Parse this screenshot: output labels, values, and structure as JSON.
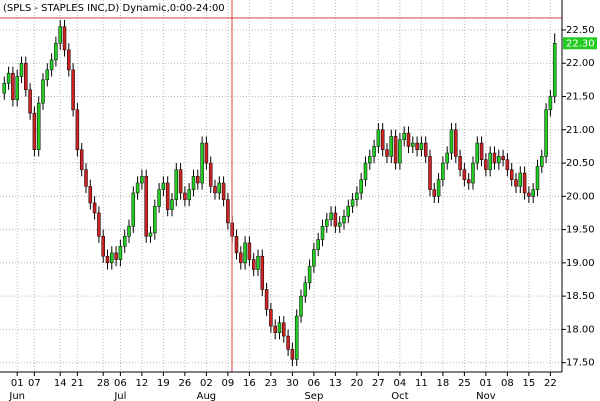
{
  "chart_data": {
    "type": "candlestick",
    "title": "(SPLS - STAPLES INC,D) Dynamic,0:00-24:00",
    "up_color": "#22cc22",
    "down_color": "#cc2222",
    "grid": true,
    "xlim": [
      -1,
      129.7
    ],
    "ylim": [
      17.36,
      22.95
    ],
    "yticks": [
      {
        "value": 17.5,
        "label": "17.50"
      },
      {
        "value": 18,
        "label": "18.00"
      },
      {
        "value": 18.5,
        "label": "18.50"
      },
      {
        "value": 19,
        "label": "19.00"
      },
      {
        "value": 19.5,
        "label": "19.50"
      },
      {
        "value": 20,
        "label": "20.00"
      },
      {
        "value": 20.5,
        "label": "20.50"
      },
      {
        "value": 21,
        "label": "21.00"
      },
      {
        "value": 21.5,
        "label": "21.50"
      },
      {
        "value": 22,
        "label": "22.00"
      },
      {
        "value": 22.5,
        "label": "22.50"
      }
    ],
    "xticks": [
      {
        "value": 3,
        "label": "01"
      },
      {
        "value": 7,
        "label": "07"
      },
      {
        "value": 13,
        "label": "14"
      },
      {
        "value": 17,
        "label": "21"
      },
      {
        "value": 23,
        "label": "28"
      },
      {
        "value": 27,
        "label": "06"
      },
      {
        "value": 32,
        "label": "12"
      },
      {
        "value": 37,
        "label": "19"
      },
      {
        "value": 42,
        "label": "26"
      },
      {
        "value": 47,
        "label": "02"
      },
      {
        "value": 52,
        "label": "09"
      },
      {
        "value": 57,
        "label": "16"
      },
      {
        "value": 62,
        "label": "23"
      },
      {
        "value": 67,
        "label": "30"
      },
      {
        "value": 72,
        "label": "06"
      },
      {
        "value": 77,
        "label": "13"
      },
      {
        "value": 82,
        "label": "20"
      },
      {
        "value": 87,
        "label": "27"
      },
      {
        "value": 92,
        "label": "04"
      },
      {
        "value": 97,
        "label": "11"
      },
      {
        "value": 102,
        "label": "18"
      },
      {
        "value": 107,
        "label": "25"
      },
      {
        "value": 112,
        "label": "01"
      },
      {
        "value": 117,
        "label": "08"
      },
      {
        "value": 122,
        "label": "15"
      },
      {
        "value": 127,
        "label": "22"
      }
    ],
    "month_ticks": [
      {
        "value": 3,
        "label": "Jun"
      },
      {
        "value": 27,
        "label": "Jul"
      },
      {
        "value": 47,
        "label": "Aug"
      },
      {
        "value": 72,
        "label": "Sep"
      },
      {
        "value": 92,
        "label": "Oct"
      },
      {
        "value": 112,
        "label": "Nov"
      }
    ],
    "last_price_label": "22.30",
    "open": [
      21.55,
      21.7,
      21.85,
      21.45,
      21.8,
      22.0,
      21.6,
      21.25,
      20.7,
      21.4,
      21.75,
      21.9,
      22.05,
      22.3,
      22.55,
      22.2,
      21.9,
      21.3,
      20.7,
      20.4,
      20.15,
      19.9,
      19.75,
      19.4,
      19.1,
      19.0,
      19.15,
      19.05,
      19.25,
      19.4,
      19.55,
      20.05,
      20.2,
      20.3,
      19.4,
      19.45,
      19.85,
      20.1,
      20.2,
      19.8,
      19.95,
      20.4,
      20.05,
      19.95,
      20.1,
      20.3,
      20.2,
      20.8,
      20.5,
      20.15,
      20.05,
      20.2,
      19.95,
      19.6,
      19.4,
      19.15,
      19.0,
      19.3,
      19.05,
      18.9,
      19.1,
      18.6,
      18.3,
      18.05,
      17.95,
      18.1,
      17.9,
      17.7,
      17.55,
      18.2,
      18.5,
      18.7,
      18.95,
      19.2,
      19.35,
      19.55,
      19.65,
      19.75,
      19.55,
      19.6,
      19.7,
      19.85,
      19.95,
      20.05,
      20.25,
      20.5,
      20.6,
      20.75,
      21.0,
      20.7,
      20.6,
      20.9,
      20.5,
      20.85,
      20.95,
      20.75,
      20.8,
      20.7,
      20.8,
      20.6,
      20.1,
      20.0,
      20.25,
      20.5,
      20.65,
      21.0,
      20.6,
      20.4,
      20.25,
      20.2,
      20.5,
      20.8,
      20.55,
      20.4,
      20.65,
      20.5,
      20.6,
      20.55,
      20.4,
      20.25,
      20.15,
      20.35,
      20.05,
      20.0,
      20.1,
      20.45,
      20.6,
      21.3,
      21.5
    ],
    "high": [
      21.8,
      21.95,
      21.95,
      21.9,
      22.1,
      22.1,
      21.7,
      21.35,
      21.5,
      21.85,
      22.0,
      22.15,
      22.4,
      22.65,
      22.65,
      22.3,
      22.0,
      21.4,
      20.8,
      20.5,
      20.25,
      20.0,
      19.85,
      19.5,
      19.2,
      19.25,
      19.25,
      19.35,
      19.5,
      19.65,
      20.15,
      20.3,
      20.4,
      20.4,
      19.55,
      19.95,
      20.2,
      20.3,
      20.3,
      20.05,
      20.5,
      20.5,
      20.15,
      20.2,
      20.4,
      20.4,
      20.9,
      20.9,
      20.6,
      20.25,
      20.3,
      20.3,
      20.05,
      19.7,
      19.5,
      19.25,
      19.4,
      19.4,
      19.15,
      19.2,
      19.2,
      18.7,
      18.4,
      18.15,
      18.2,
      18.2,
      18.0,
      17.8,
      18.3,
      18.6,
      18.8,
      19.05,
      19.3,
      19.45,
      19.65,
      19.75,
      19.85,
      19.85,
      19.7,
      19.8,
      19.95,
      20.05,
      20.15,
      20.35,
      20.6,
      20.7,
      20.85,
      21.1,
      21.1,
      20.8,
      21.0,
      21.0,
      20.95,
      21.05,
      21.05,
      20.9,
      20.9,
      20.9,
      20.9,
      20.7,
      20.2,
      20.35,
      20.6,
      20.75,
      21.1,
      21.1,
      20.7,
      20.5,
      20.35,
      20.6,
      20.9,
      20.9,
      20.65,
      20.75,
      20.75,
      20.7,
      20.7,
      20.65,
      20.5,
      20.35,
      20.45,
      20.45,
      20.15,
      20.2,
      20.55,
      20.7,
      21.4,
      21.6,
      22.45
    ],
    "low": [
      21.45,
      21.6,
      21.35,
      21.35,
      21.7,
      21.5,
      21.15,
      20.6,
      20.6,
      21.3,
      21.65,
      21.8,
      21.95,
      22.2,
      22.1,
      21.8,
      21.2,
      20.6,
      20.3,
      20.05,
      19.8,
      19.65,
      19.3,
      19.0,
      18.9,
      18.9,
      18.95,
      18.95,
      19.15,
      19.3,
      19.45,
      19.95,
      20.1,
      19.3,
      19.3,
      19.35,
      19.75,
      20.0,
      19.7,
      19.7,
      19.85,
      19.95,
      19.85,
      19.85,
      20.0,
      20.1,
      20.1,
      20.4,
      20.05,
      19.95,
      19.95,
      19.85,
      19.5,
      19.3,
      19.05,
      18.9,
      18.9,
      18.95,
      18.8,
      18.8,
      18.5,
      18.2,
      17.95,
      17.85,
      17.85,
      17.8,
      17.6,
      17.45,
      17.45,
      18.1,
      18.4,
      18.6,
      18.85,
      19.1,
      19.25,
      19.45,
      19.55,
      19.45,
      19.45,
      19.5,
      19.6,
      19.75,
      19.85,
      19.95,
      20.15,
      20.4,
      20.5,
      20.65,
      20.6,
      20.5,
      20.5,
      20.4,
      20.4,
      20.75,
      20.65,
      20.65,
      20.6,
      20.6,
      20.5,
      20.0,
      19.9,
      19.9,
      20.15,
      20.4,
      20.55,
      20.5,
      20.3,
      20.15,
      20.1,
      20.1,
      20.4,
      20.45,
      20.3,
      20.3,
      20.4,
      20.4,
      20.45,
      20.3,
      20.15,
      20.05,
      20.05,
      19.95,
      19.9,
      19.9,
      20.0,
      20.35,
      20.5,
      21.2,
      21.4
    ],
    "close": [
      21.7,
      21.85,
      21.45,
      21.8,
      22.0,
      21.6,
      21.25,
      20.7,
      21.4,
      21.75,
      21.9,
      22.05,
      22.3,
      22.55,
      22.2,
      21.9,
      21.3,
      20.7,
      20.4,
      20.15,
      19.9,
      19.75,
      19.4,
      19.1,
      19.0,
      19.15,
      19.05,
      19.25,
      19.4,
      19.55,
      20.05,
      20.2,
      20.3,
      19.4,
      19.45,
      19.85,
      20.1,
      20.2,
      19.8,
      19.95,
      20.4,
      20.05,
      19.95,
      20.1,
      20.3,
      20.2,
      20.8,
      20.5,
      20.15,
      20.05,
      20.2,
      19.95,
      19.6,
      19.4,
      19.15,
      19.0,
      19.3,
      19.05,
      18.9,
      19.1,
      18.6,
      18.3,
      18.05,
      17.95,
      18.1,
      17.9,
      17.7,
      17.55,
      18.2,
      18.5,
      18.7,
      18.95,
      19.2,
      19.35,
      19.55,
      19.65,
      19.75,
      19.55,
      19.6,
      19.7,
      19.85,
      19.95,
      20.05,
      20.25,
      20.5,
      20.6,
      20.75,
      21.0,
      20.7,
      20.6,
      20.9,
      20.5,
      20.85,
      20.95,
      20.75,
      20.8,
      20.7,
      20.8,
      20.6,
      20.1,
      20.0,
      20.25,
      20.5,
      20.65,
      21.0,
      20.6,
      20.4,
      20.25,
      20.2,
      20.5,
      20.8,
      20.55,
      20.4,
      20.65,
      20.5,
      20.6,
      20.55,
      20.4,
      20.25,
      20.15,
      20.35,
      20.05,
      20.0,
      20.1,
      20.45,
      20.6,
      21.3,
      21.5,
      22.3
    ]
  }
}
